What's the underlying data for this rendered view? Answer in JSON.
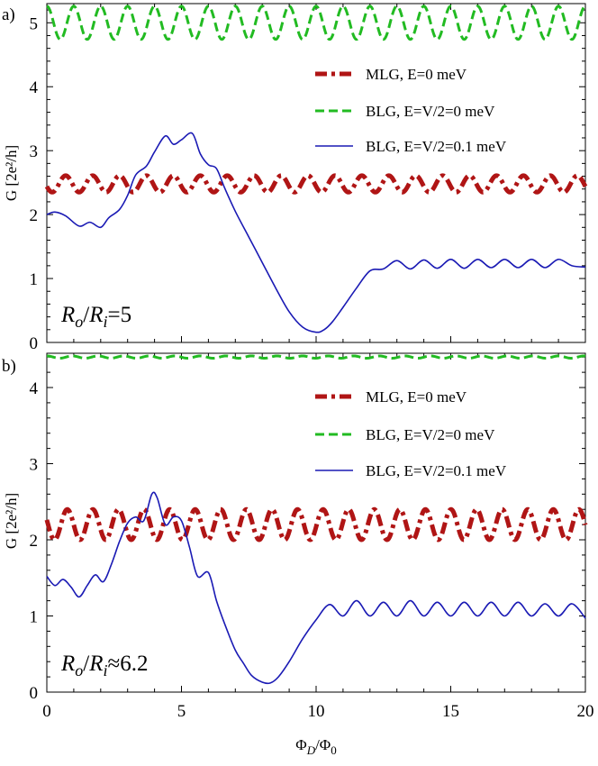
{
  "chart_data": [
    {
      "type": "line",
      "panel_label": "a)",
      "ylabel": "G [2e²/h]",
      "xlabel": "",
      "xlim": [
        0,
        20
      ],
      "ylim": [
        0,
        5.3
      ],
      "x_ticks": [
        "0",
        "5",
        "10",
        "15",
        "20"
      ],
      "y_ticks": [
        "0",
        "1",
        "2",
        "3",
        "4",
        "5"
      ],
      "annotation": "Ro/Ri=5",
      "legend_position": "top-right",
      "legend": [
        "MLG, E=0 meV",
        "BLG, E=V/2=0 meV",
        "BLG, E=V/2=0.1 meV"
      ],
      "colors": [
        "#b01515",
        "#22bb22",
        "#1a1ab4"
      ],
      "series": [
        {
          "name": "MLG, E=0 meV",
          "style": "dash-dot-thick",
          "model": {
            "mean": 2.48,
            "amplitude": 0.13,
            "period": 1.0,
            "phase": 0.3
          },
          "range": [
            2.35,
            2.61
          ]
        },
        {
          "name": "BLG, E=V/2=0 meV",
          "style": "dashed",
          "model": {
            "mean": 5.0,
            "amplitude": 0.26,
            "period": 1.0,
            "phase": 0.0
          },
          "range": [
            4.74,
            5.26
          ]
        },
        {
          "name": "BLG, E=V/2=0.1 meV",
          "style": "solid",
          "x": [
            0,
            0.3,
            0.7,
            1.2,
            1.6,
            2.0,
            2.3,
            2.7,
            3.0,
            3.3,
            3.7,
            4.0,
            4.4,
            4.7,
            5.0,
            5.4,
            5.7,
            6.0,
            6.3,
            6.6,
            7.0,
            7.5,
            8.0,
            8.5,
            9.0,
            9.5,
            10.0,
            10.3,
            10.6,
            11.0,
            11.5,
            12.0,
            12.5,
            13.0,
            13.5,
            14.0,
            14.5,
            15.0,
            15.5,
            16.0,
            16.5,
            17.0,
            17.5,
            18.0,
            18.5,
            19.0,
            19.5,
            20.0
          ],
          "y": [
            2.0,
            2.04,
            1.98,
            1.82,
            1.88,
            1.8,
            1.95,
            2.08,
            2.3,
            2.62,
            2.76,
            2.98,
            3.23,
            3.1,
            3.17,
            3.27,
            2.95,
            2.78,
            2.72,
            2.42,
            2.05,
            1.65,
            1.25,
            0.85,
            0.48,
            0.24,
            0.16,
            0.2,
            0.32,
            0.55,
            0.85,
            1.12,
            1.15,
            1.28,
            1.15,
            1.29,
            1.16,
            1.3,
            1.16,
            1.3,
            1.17,
            1.3,
            1.17,
            1.3,
            1.17,
            1.3,
            1.2,
            1.18
          ]
        }
      ]
    },
    {
      "type": "line",
      "panel_label": "b)",
      "ylabel": "G [2e²/h]",
      "xlabel": "Φ_D/Φ_0",
      "xlim": [
        0,
        20
      ],
      "ylim": [
        0,
        4.45
      ],
      "x_ticks": [
        "0",
        "5",
        "10",
        "15",
        "20"
      ],
      "y_ticks": [
        "0",
        "1",
        "2",
        "3",
        "4"
      ],
      "annotation": "Ro/Ri≈6.2",
      "legend_position": "top-right",
      "legend": [
        "MLG, E=0 meV",
        "BLG, E=V/2=0 meV",
        "BLG, E=V/2=0.1 meV"
      ],
      "colors": [
        "#b01515",
        "#22bb22",
        "#1a1ab4"
      ],
      "series": [
        {
          "name": "MLG, E=0 meV",
          "style": "dash-dot-thick",
          "model": {
            "mean": 2.2,
            "amplitude": 0.2,
            "period": 0.95,
            "phase": 0.2
          },
          "range": [
            2.0,
            2.4
          ]
        },
        {
          "name": "BLG, E=V/2=0 meV",
          "style": "dashed",
          "model": {
            "mean": 4.4,
            "amplitude": 0.015,
            "period": 0.95,
            "phase": 0.0
          },
          "range": [
            4.385,
            4.415
          ]
        },
        {
          "name": "BLG, E=V/2=0.1 meV",
          "style": "solid",
          "x": [
            0,
            0.3,
            0.6,
            0.9,
            1.2,
            1.5,
            1.8,
            2.1,
            2.4,
            2.7,
            3.0,
            3.3,
            3.6,
            3.9,
            4.1,
            4.4,
            4.7,
            5.0,
            5.3,
            5.6,
            6.0,
            6.3,
            6.6,
            7.0,
            7.3,
            7.6,
            8.0,
            8.3,
            8.6,
            9.0,
            9.5,
            10.0,
            10.5,
            11.0,
            11.5,
            12.0,
            12.5,
            13.0,
            13.5,
            14.0,
            14.5,
            15.0,
            15.5,
            16.0,
            16.5,
            17.0,
            17.5,
            18.0,
            18.5,
            19.0,
            19.5,
            20.0
          ],
          "y": [
            1.52,
            1.4,
            1.48,
            1.38,
            1.25,
            1.4,
            1.54,
            1.45,
            1.68,
            1.98,
            2.22,
            2.3,
            2.25,
            2.6,
            2.55,
            2.2,
            2.3,
            2.25,
            1.9,
            1.52,
            1.57,
            1.2,
            0.9,
            0.55,
            0.38,
            0.22,
            0.13,
            0.12,
            0.2,
            0.4,
            0.7,
            0.95,
            1.15,
            1.0,
            1.2,
            1.0,
            1.18,
            1.0,
            1.2,
            1.0,
            1.18,
            1.0,
            1.18,
            1.0,
            1.18,
            1.0,
            1.18,
            1.0,
            1.16,
            1.0,
            1.16,
            0.97
          ]
        }
      ]
    }
  ]
}
